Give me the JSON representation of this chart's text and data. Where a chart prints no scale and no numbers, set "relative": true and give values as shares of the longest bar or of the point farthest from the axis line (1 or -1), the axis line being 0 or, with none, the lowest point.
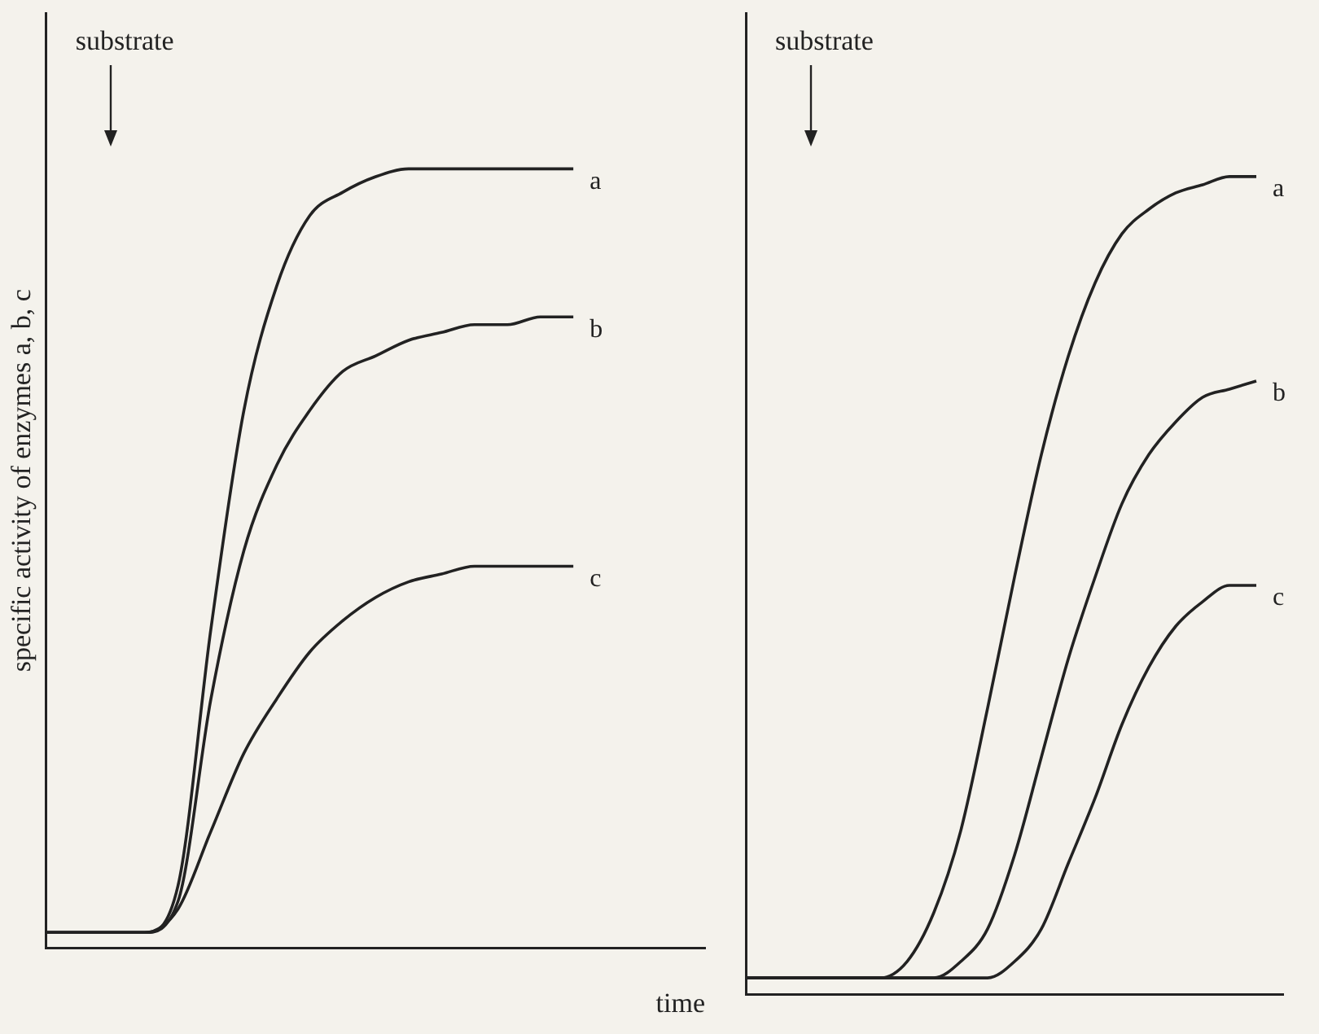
{
  "chart_data": [
    {
      "type": "line",
      "relative": true,
      "xlabel": "time",
      "ylabel": "specific activity of enzymes a, b, c",
      "annotations": [
        "substrate"
      ],
      "grid": false,
      "legend": false,
      "marker": "none",
      "line_style": "solid",
      "categories": [
        null,
        null,
        null,
        null,
        null,
        null,
        null,
        null,
        null,
        null,
        null,
        null,
        null,
        null,
        null,
        null,
        null,
        null,
        null,
        null,
        null
      ],
      "series": [
        {
          "name": "a",
          "color": "#222222",
          "values": [
            0.02,
            0.02,
            0.02,
            0.02,
            0.08,
            0.41,
            0.69,
            0.85,
            0.94,
            0.97,
            0.99,
            1,
            1,
            1,
            1,
            1,
            1,
            null,
            null,
            null,
            null
          ]
        },
        {
          "name": "b",
          "color": "#222222",
          "values": [
            0.02,
            0.02,
            0.02,
            0.02,
            0.06,
            0.32,
            0.51,
            0.62,
            0.69,
            0.74,
            0.76,
            0.78,
            0.79,
            0.8,
            0.8,
            0.81,
            0.81,
            null,
            null,
            null,
            null
          ]
        },
        {
          "name": "c",
          "color": "#222222",
          "values": [
            0.02,
            0.02,
            0.02,
            0.02,
            0.05,
            0.15,
            0.25,
            0.32,
            0.38,
            0.42,
            0.45,
            0.47,
            0.48,
            0.49,
            0.49,
            0.49,
            0.49,
            null,
            null,
            null,
            null
          ]
        }
      ]
    },
    {
      "type": "line",
      "relative": true,
      "annotations": [
        "substrate"
      ],
      "grid": false,
      "legend": false,
      "marker": "none",
      "line_style": "solid",
      "categories": [
        null,
        null,
        null,
        null,
        null,
        null,
        null,
        null,
        null,
        null,
        null,
        null,
        null,
        null,
        null,
        null,
        null,
        null,
        null,
        null,
        null
      ],
      "series": [
        {
          "name": "a",
          "color": "#222222",
          "values": [
            0.02,
            0.02,
            0.02,
            0.02,
            0.02,
            0.02,
            0.04,
            0.1,
            0.2,
            0.35,
            0.51,
            0.66,
            0.78,
            0.87,
            0.93,
            0.96,
            0.98,
            0.99,
            1,
            1,
            null
          ]
        },
        {
          "name": "b",
          "color": "#222222",
          "values": [
            0.02,
            0.02,
            0.02,
            0.02,
            0.02,
            0.02,
            0.02,
            0.02,
            0.04,
            0.08,
            0.17,
            0.29,
            0.41,
            0.51,
            0.6,
            0.66,
            0.7,
            0.73,
            0.74,
            0.75,
            null
          ]
        },
        {
          "name": "c",
          "color": "#222222",
          "values": [
            0.02,
            0.02,
            0.02,
            0.02,
            0.02,
            0.02,
            0.02,
            0.02,
            0.02,
            0.02,
            0.04,
            0.08,
            0.16,
            0.24,
            0.33,
            0.4,
            0.45,
            0.48,
            0.5,
            0.5,
            null
          ]
        }
      ]
    }
  ]
}
